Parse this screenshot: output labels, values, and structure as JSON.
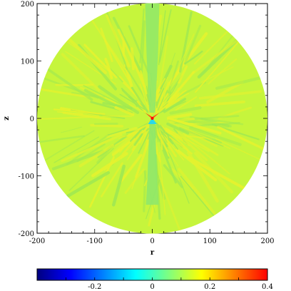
{
  "chart_data": {
    "type": "heatmap",
    "title": "",
    "xlabel": "r",
    "ylabel": "z",
    "xlim": [
      -200,
      200
    ],
    "ylim": [
      -200,
      200
    ],
    "x_ticks": [
      "-200",
      "-100",
      "0",
      "100",
      "200"
    ],
    "y_ticks": [
      "200",
      "100",
      "0",
      "-100",
      "-200"
    ],
    "domain_shape": "disk of radius 200 centered at origin",
    "background_value": 0,
    "features": [
      {
        "label": "polar jet (z > 0)",
        "value": -0.05
      },
      {
        "label": "polar jet (z < 0)",
        "value": -0.1
      },
      {
        "label": "central core",
        "value": 0.3
      },
      {
        "label": "filaments",
        "value": 0.1
      }
    ],
    "colorbar": {
      "range": [
        -0.4,
        0.4
      ],
      "ticks": [
        "-0.2",
        "0",
        "0.2",
        "0.4"
      ],
      "tick_values": [
        -0.2,
        0,
        0.2,
        0.4
      ],
      "colormap": [
        "#00007f",
        "#0000ff",
        "#0080ff",
        "#00ffff",
        "#7fff7f",
        "#ffff00",
        "#ff8000",
        "#ff0000"
      ]
    },
    "colors": {
      "background_field": "#c6f53c",
      "jet": "#8fe86a",
      "core_hot": "#ff4a1a",
      "core_cold": "#2ad8e8",
      "filament_light": "#e6f22e",
      "filament_dark": "#9ee852"
    }
  }
}
